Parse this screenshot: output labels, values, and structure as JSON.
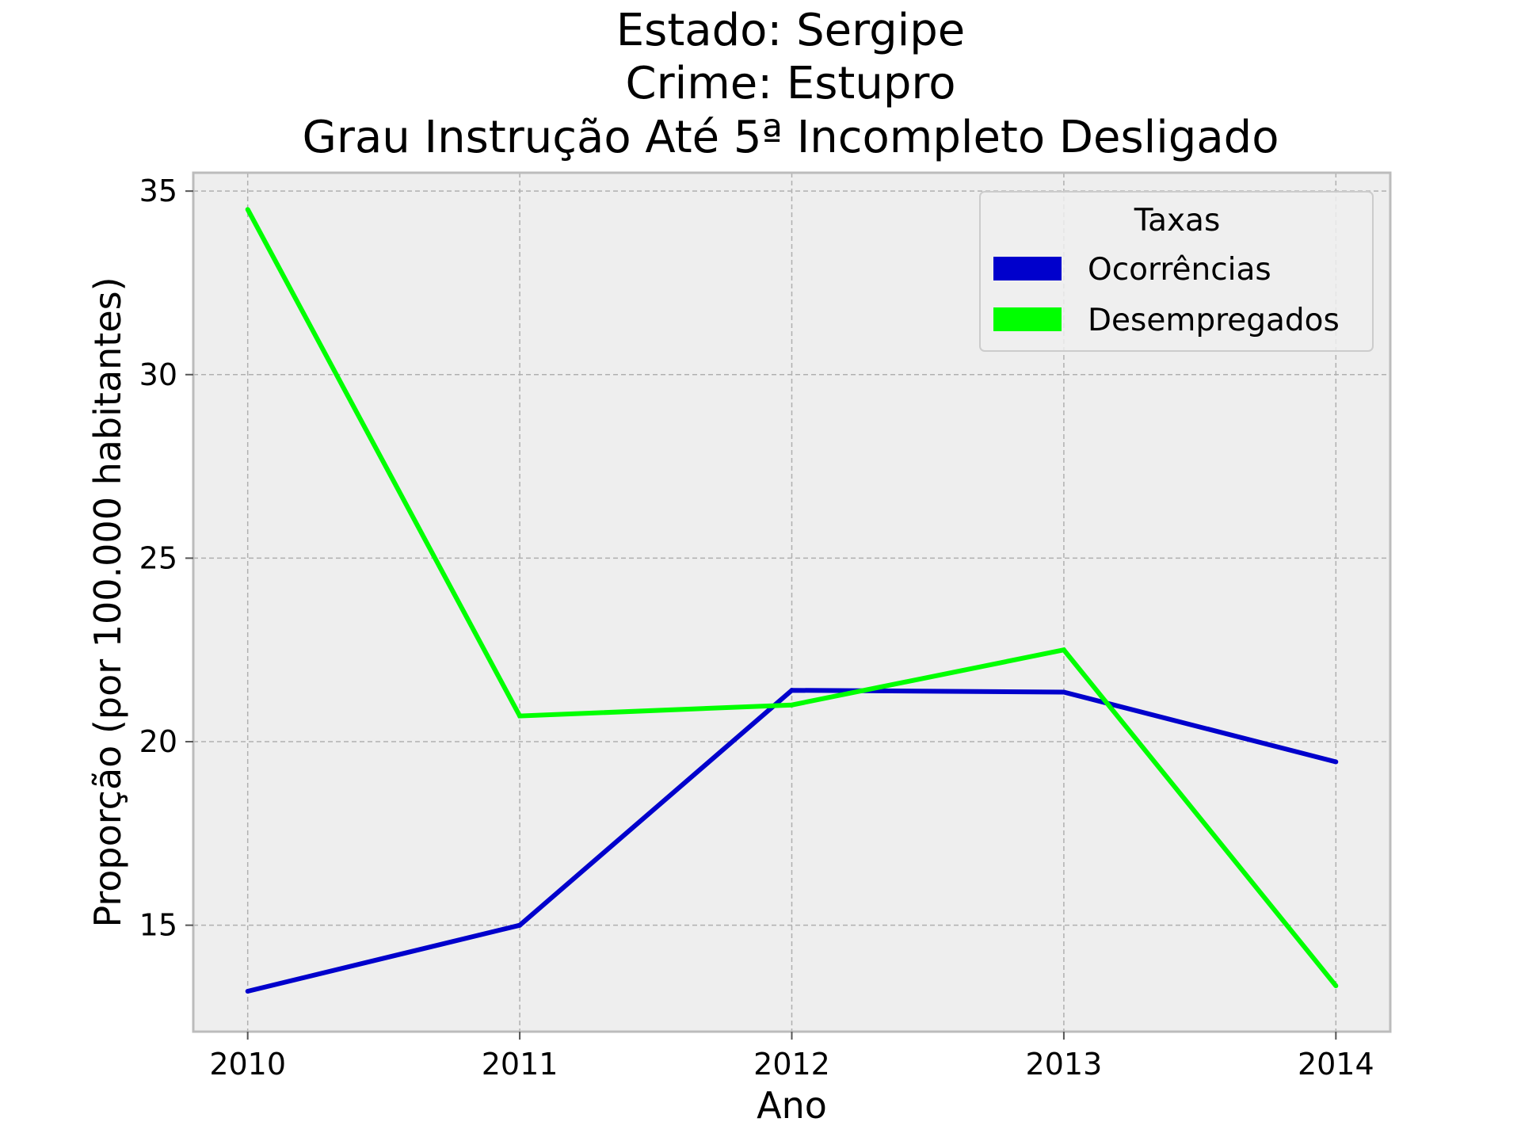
{
  "chart_data": {
    "type": "line",
    "title_lines": [
      "Estado: Sergipe",
      "Crime: Estupro",
      "Grau Instrução  Até 5ª Incompleto   Desligado"
    ],
    "xlabel": "Ano",
    "ylabel": "Proporção (por 100.000 habitantes)",
    "x": [
      2010,
      2011,
      2012,
      2013,
      2014
    ],
    "x_tick_labels": [
      "2010",
      "2011",
      "2012",
      "2013",
      "2014"
    ],
    "y_ticks": [
      15,
      20,
      25,
      30,
      35
    ],
    "y_tick_labels": [
      "15",
      "20",
      "25",
      "30",
      "35"
    ],
    "xlim": [
      2009.8,
      2014.2
    ],
    "ylim": [
      12.1,
      35.5
    ],
    "grid": true,
    "legend": {
      "title": "Taxas",
      "placement": "top-right"
    },
    "series": [
      {
        "name": "Ocorrências",
        "color": "#0000cc",
        "values": [
          13.2,
          15.0,
          21.4,
          21.35,
          19.45
        ]
      },
      {
        "name": "Desempregados",
        "color": "#00ff00",
        "values": [
          34.5,
          20.7,
          21.0,
          22.5,
          13.35
        ]
      }
    ],
    "plot_background": "#eeeeee",
    "axes_edge_color": "#bcbcbc"
  }
}
